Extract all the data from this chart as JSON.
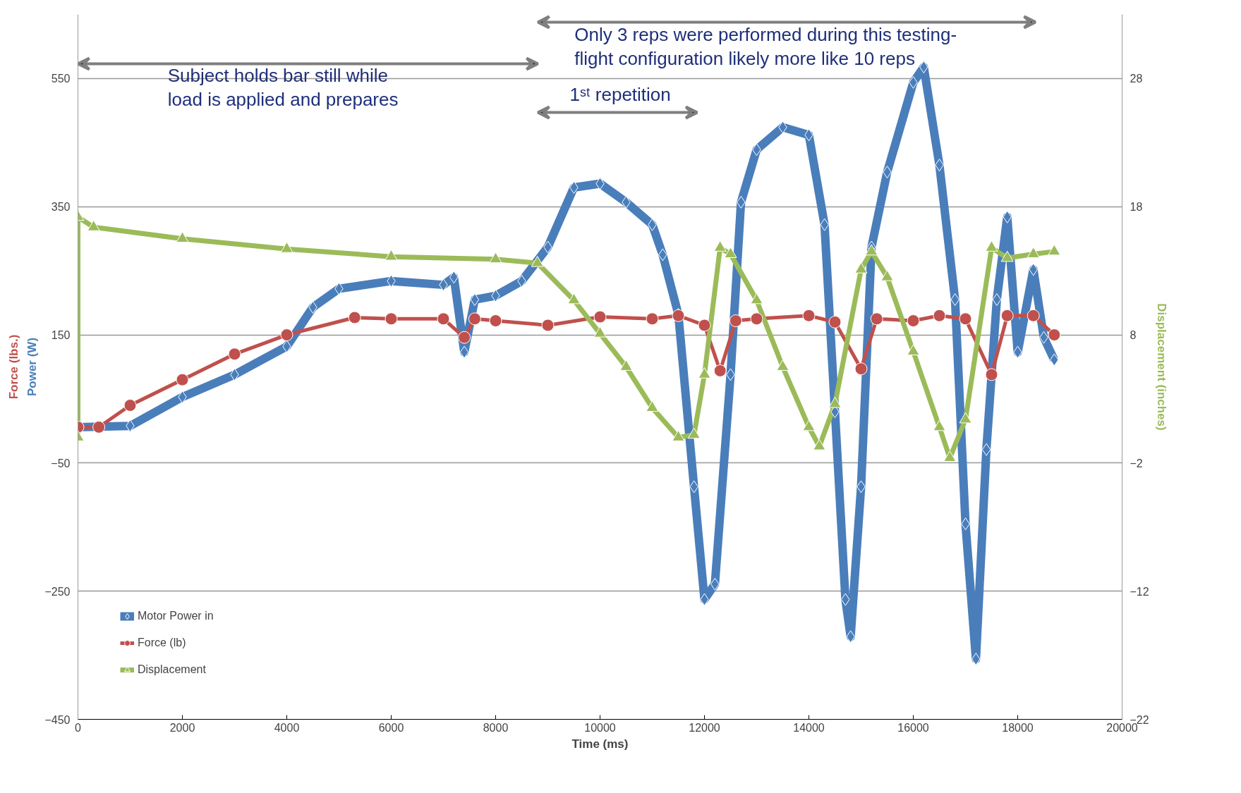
{
  "chart_data": {
    "type": "line",
    "xlabel": "Time (ms)",
    "ylabel": "Power (W)",
    "y2label": "Displacement (inches)",
    "xlim": [
      0,
      20000
    ],
    "xticks": [
      0,
      2000,
      4000,
      6000,
      8000,
      10000,
      12000,
      14000,
      16000,
      18000,
      20000
    ],
    "ylim": [
      -450,
      650
    ],
    "yticks": [
      -450,
      -250,
      -50,
      150,
      350,
      550
    ],
    "y2lim": [
      -22,
      33
    ],
    "y2ticks": [
      -22,
      -12,
      -2,
      8,
      18,
      28
    ],
    "grid": "y",
    "legend": "bottom left",
    "line_style": "solid",
    "annotations": [
      "Force (lbs.)",
      "Subject holds bar still while\nload is applied and prepares",
      "Only 3 reps were performed during this testing-\nflight configuration likely more like 10 reps",
      "1ˢᵗ repetition"
    ],
    "series": [
      {
        "name": "Motor Power in",
        "color": "#4a7ebb",
        "marker": "diamond",
        "x": [
          0,
          1000,
          2000,
          3000,
          4000,
          4500,
          5000,
          6000,
          7000,
          7200,
          7400,
          7600,
          8000,
          8500,
          9000,
          9500,
          10000,
          10500,
          11000,
          11200,
          11500,
          11800,
          12000,
          12200,
          12500,
          12700,
          13000,
          13500,
          14000,
          14300,
          14500,
          14700,
          14800,
          15000,
          15200,
          15500,
          16000,
          16200,
          16500,
          16800,
          17000,
          17200,
          17400,
          17600,
          17800,
          18000,
          18300,
          18500,
          18700
        ],
        "values": [
          6,
          8,
          53,
          88,
          132,
          193,
          222,
          234,
          228,
          240,
          123,
          205,
          211,
          234,
          287,
          380,
          386,
          357,
          322,
          275,
          182,
          -87,
          -263,
          -239,
          88,
          357,
          439,
          474,
          462,
          322,
          30,
          -263,
          -321,
          -87,
          287,
          404,
          544,
          568,
          415,
          205,
          -145,
          -356,
          -29,
          205,
          334,
          123,
          252,
          146,
          111
        ]
      },
      {
        "name": "Force (lb)",
        "color": "#c0504d",
        "marker": "circle",
        "x": [
          0,
          400,
          1000,
          2000,
          3000,
          4000,
          5300,
          6000,
          7000,
          7400,
          7600,
          8000,
          9000,
          10000,
          11000,
          11500,
          12000,
          12300,
          12600,
          13000,
          14000,
          14500,
          15000,
          15300,
          16000,
          16500,
          17000,
          17500,
          17800,
          18300,
          18700
        ],
        "values": [
          6,
          6,
          40,
          80,
          120,
          150,
          177,
          175,
          175,
          146,
          175,
          172,
          165,
          178,
          175,
          180,
          165,
          94,
          172,
          175,
          180,
          170,
          97,
          175,
          172,
          180,
          175,
          88,
          180,
          180,
          150
        ]
      },
      {
        "name": "Displacement",
        "color": "#9bbb59",
        "marker": "triangle",
        "axis": "y2",
        "x": [
          0,
          0,
          300,
          2000,
          4000,
          6000,
          8000,
          8800,
          9500,
          10000,
          10500,
          11000,
          11500,
          11800,
          12000,
          12300,
          12500,
          13000,
          13500,
          14000,
          14200,
          14500,
          15000,
          15200,
          15500,
          16000,
          16500,
          16700,
          17000,
          17500,
          17800,
          18300,
          18700
        ],
        "values": [
          0,
          17.2,
          16.4,
          15.5,
          14.7,
          14.1,
          13.9,
          13.6,
          10.7,
          8.1,
          5.5,
          2.3,
          0,
          0.2,
          4.9,
          14.8,
          14.3,
          10.7,
          5.5,
          0.8,
          -0.7,
          2.6,
          13.1,
          14.5,
          12.5,
          6.7,
          0.8,
          -1.6,
          1.4,
          14.8,
          14.0,
          14.3,
          14.5
        ]
      }
    ]
  }
}
